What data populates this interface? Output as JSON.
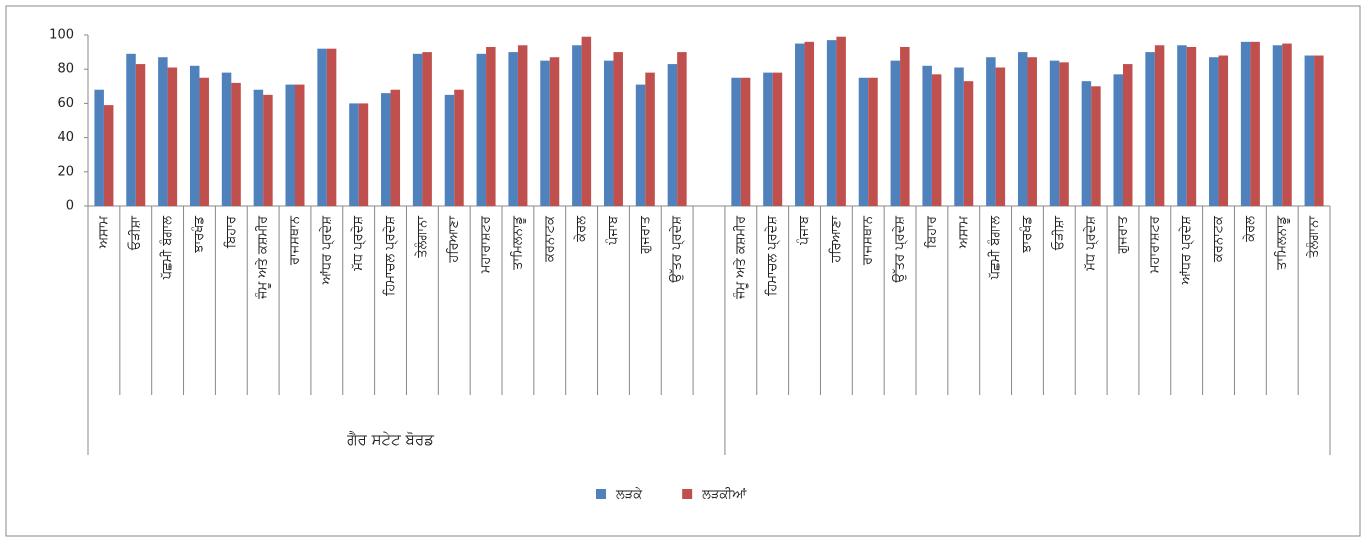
{
  "chart_data": {
    "type": "bar",
    "group_label": "ਗੈਰ ਸਟੇਟ ਬੋਰਡ",
    "categories": [
      "ਅਸਾਮ",
      "ਓੜੀਸ਼ਾ",
      "ਪੱਛਮੀ ਬੰਗਾਲ",
      "ਝਾਰਖੰਡ",
      "ਬਿਹਾਰ",
      "ਜੰਮੂ ਅਤੇ ਕਸ਼ਮੀਰ",
      "ਰਾਜਸਥਾਨ",
      "ਆਂਧਰ ਪ੍ਰਦੇਸ਼",
      "ਮੱਧ ਪ੍ਰਦੇਸ਼",
      "ਹਿਮਾਚਲ ਪ੍ਰਦੇਸ਼",
      "ਤੇਲੰਗਾਨਾ",
      "ਹਰਿਆਣਾ",
      "ਮਹਾਰਾਸ਼ਟਰ",
      "ਤਾਮਿਲਨਾਡੂ",
      "ਕਰਨਾਟਕ",
      "ਕੇਰਲ",
      "ਪੰਜਾਬ",
      "ਗੁਜਰਾਤ",
      "ਉੱਤਰ ਪ੍ਰਦੇਸ਼",
      null,
      "ਜੰਮੂ ਅਤੇ ਕਸ਼ਮੀਰ",
      "ਹਿਮਾਚਲ ਪ੍ਰਦੇਸ਼",
      "ਪੰਜਾਬ",
      "ਹਰਿਆਣਾ",
      "ਰਾਜਸਥਾਨ",
      "ਉੱਤਰ ਪ੍ਰਦੇਸ਼",
      "ਬਿਹਾਰ",
      "ਅਸਾਮ",
      "ਪੱਛਮੀ ਬੰਗਾਲ",
      "ਝਾਰਖੰਡ",
      "ਓੜੀਸ਼ਾ",
      "ਮੱਧ ਪ੍ਰਦੇਸ਼",
      "ਗੁਜਰਾਤ",
      "ਮਹਾਰਾਸ਼ਟਰ",
      "ਆਂਧਰ ਪ੍ਰਦੇਸ਼",
      "ਕਰਨਾਟਕ",
      "ਕੇਰਲ",
      "ਤਾਮਿਲਨਾਡੂ",
      "ਤੇਲੰਗਾਨਾ"
    ],
    "series": [
      {
        "name": "ਲੜਕੇ",
        "color": "#4f81bd",
        "values": [
          68,
          89,
          87,
          82,
          78,
          68,
          71,
          92,
          60,
          66,
          89,
          65,
          89,
          90,
          85,
          94,
          85,
          71,
          83,
          null,
          75,
          78,
          95,
          97,
          75,
          85,
          82,
          81,
          87,
          90,
          85,
          73,
          77,
          90,
          94,
          87,
          96,
          94,
          88
        ]
      },
      {
        "name": "ਲੜਕੀਆਂ",
        "color": "#c0504d",
        "values": [
          59,
          83,
          81,
          75,
          72,
          65,
          71,
          92,
          60,
          68,
          90,
          68,
          93,
          94,
          87,
          99,
          90,
          78,
          90,
          null,
          75,
          78,
          96,
          99,
          75,
          93,
          77,
          73,
          81,
          87,
          84,
          70,
          83,
          94,
          93,
          88,
          96,
          95,
          88
        ]
      }
    ],
    "ylim": [
      0,
      100
    ],
    "yticks": [
      0,
      20,
      40,
      60,
      80,
      100
    ],
    "legend": "bottom"
  }
}
